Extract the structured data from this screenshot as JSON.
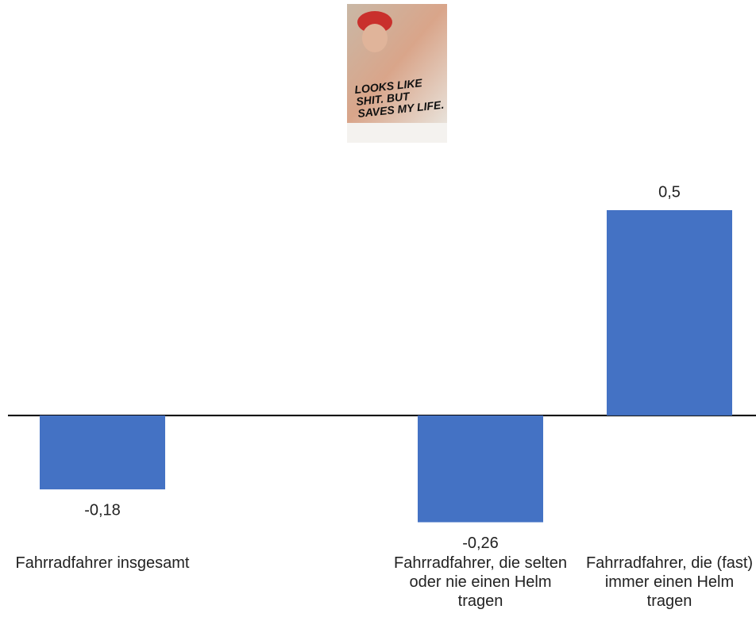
{
  "chart_data": {
    "type": "bar",
    "image_text": [
      "LOOKS LIKE",
      "SHIT. BUT",
      "SAVES MY LIFE."
    ],
    "categories": [
      "Fahrradfahrer insgesamt",
      null,
      "Fahrradfahrer, die selten oder nie einen Helm tragen",
      "Fahrradfahrer, die (fast) immer einen Helm tragen"
    ],
    "values": [
      -0.18,
      null,
      -0.26,
      0.5
    ],
    "value_labels": [
      "-0,18",
      null,
      "-0,26",
      "0,5"
    ],
    "color": "#4472c4",
    "ylim": [
      -0.4,
      0.5
    ]
  }
}
